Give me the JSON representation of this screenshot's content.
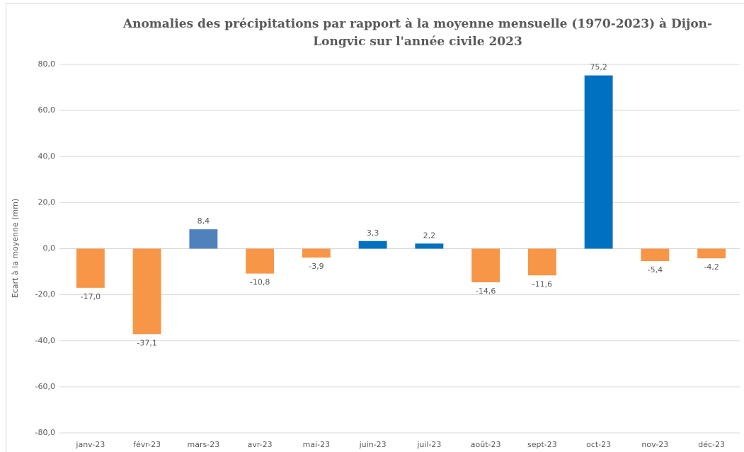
{
  "chart_data": {
    "type": "bar",
    "title": "Anomalies des précipitations par rapport à la moyenne mensuelle (1970-2023) à Dijon-Longvic sur  l'année civile 2023",
    "y_label": "Ecart à la moyenne (mm)",
    "categories": [
      "janv-23",
      "févr-23",
      "mars-23",
      "avr-23",
      "mai-23",
      "juin-23",
      "juil-23",
      "août-23",
      "sept-23",
      "oct-23",
      "nov-23",
      "déc-23"
    ],
    "values": [
      -17.0,
      -37.1,
      8.4,
      -10.8,
      -3.9,
      3.3,
      2.2,
      -14.6,
      -11.6,
      75.2,
      -5.4,
      -4.2
    ],
    "value_labels": [
      "-17,0",
      "-37,1",
      "8,4",
      "-10,8",
      "-3,9",
      "3,3",
      "2,2",
      "-14,6",
      "-11,6",
      "75,2",
      "-5,4",
      "-4,2"
    ],
    "colors": [
      "#f79646",
      "#f79646",
      "#4f81bd",
      "#f79646",
      "#f79646",
      "#0070c0",
      "#0070c0",
      "#f79646",
      "#f79646",
      "#0070c0",
      "#f79646",
      "#f79646"
    ],
    "ylim": [
      -80,
      80
    ],
    "yticks": [
      {
        "value": -80,
        "label": "-80,0"
      },
      {
        "value": -60,
        "label": "-60,0"
      },
      {
        "value": -40,
        "label": "-40,0"
      },
      {
        "value": -20,
        "label": "-20,0"
      },
      {
        "value": 0,
        "label": "0,0"
      },
      {
        "value": 20,
        "label": "20,0"
      },
      {
        "value": 40,
        "label": "40,0"
      },
      {
        "value": 60,
        "label": "60,0"
      },
      {
        "value": 80,
        "label": "80,0"
      }
    ],
    "grid": true
  }
}
